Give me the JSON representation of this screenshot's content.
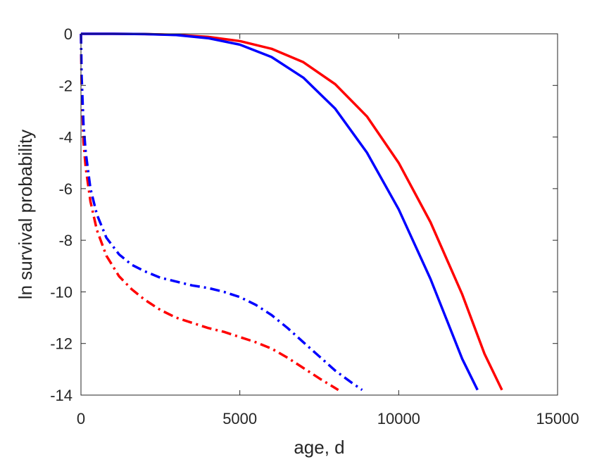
{
  "chart_data": {
    "type": "line",
    "title": "",
    "xlabel": "age, d",
    "ylabel": "ln survival probability",
    "xlim": [
      0,
      15000
    ],
    "ylim": [
      -14,
      0
    ],
    "xticks": [
      0,
      5000,
      10000,
      15000
    ],
    "xtick_labels": [
      "0",
      "5000",
      "10000",
      "15000"
    ],
    "yticks": [
      0,
      -2,
      -4,
      -6,
      -8,
      -10,
      -12,
      -14
    ],
    "ytick_labels": [
      "0",
      "-2",
      "-4",
      "-6",
      "-8",
      "-10",
      "-12",
      "-14"
    ],
    "grid": false,
    "legend": "none",
    "series": [
      {
        "color": "#ff0000",
        "style": "solid",
        "points": [
          [
            0,
            0
          ],
          [
            1000,
            -0.001
          ],
          [
            2000,
            -0.01
          ],
          [
            3000,
            -0.04
          ],
          [
            4000,
            -0.12
          ],
          [
            5000,
            -0.28
          ],
          [
            6000,
            -0.58
          ],
          [
            7000,
            -1.1
          ],
          [
            8000,
            -1.95
          ],
          [
            9000,
            -3.2
          ],
          [
            10000,
            -5.0
          ],
          [
            11000,
            -7.3
          ],
          [
            12000,
            -10.1
          ],
          [
            12700,
            -12.4
          ],
          [
            13250,
            -13.8
          ]
        ]
      },
      {
        "color": "#0000ff",
        "style": "solid",
        "points": [
          [
            0,
            0
          ],
          [
            1000,
            -0.001
          ],
          [
            2000,
            -0.01
          ],
          [
            3000,
            -0.05
          ],
          [
            4000,
            -0.17
          ],
          [
            5000,
            -0.42
          ],
          [
            6000,
            -0.9
          ],
          [
            7000,
            -1.7
          ],
          [
            8000,
            -2.9
          ],
          [
            9000,
            -4.6
          ],
          [
            10000,
            -6.8
          ],
          [
            11000,
            -9.5
          ],
          [
            12000,
            -12.6
          ],
          [
            12480,
            -13.8
          ]
        ]
      },
      {
        "color": "#ff0000",
        "style": "dashdot",
        "points": [
          [
            0,
            0
          ],
          [
            20,
            -2.0
          ],
          [
            80,
            -4.2
          ],
          [
            150,
            -5.2
          ],
          [
            300,
            -6.5
          ],
          [
            500,
            -7.6
          ],
          [
            800,
            -8.6
          ],
          [
            1200,
            -9.4
          ],
          [
            1600,
            -9.9
          ],
          [
            2000,
            -10.3
          ],
          [
            2500,
            -10.7
          ],
          [
            3000,
            -11.0
          ],
          [
            3500,
            -11.2
          ],
          [
            4000,
            -11.4
          ],
          [
            4500,
            -11.55
          ],
          [
            5000,
            -11.75
          ],
          [
            5500,
            -11.95
          ],
          [
            6000,
            -12.2
          ],
          [
            6500,
            -12.55
          ],
          [
            7000,
            -12.95
          ],
          [
            7500,
            -13.35
          ],
          [
            8100,
            -13.8
          ]
        ]
      },
      {
        "color": "#0000ff",
        "style": "dashdot",
        "points": [
          [
            0,
            0
          ],
          [
            20,
            -1.6
          ],
          [
            80,
            -3.5
          ],
          [
            150,
            -4.6
          ],
          [
            300,
            -6.0
          ],
          [
            500,
            -7.0
          ],
          [
            800,
            -7.9
          ],
          [
            1200,
            -8.55
          ],
          [
            1600,
            -8.95
          ],
          [
            2000,
            -9.2
          ],
          [
            2500,
            -9.45
          ],
          [
            3000,
            -9.6
          ],
          [
            3500,
            -9.75
          ],
          [
            4000,
            -9.85
          ],
          [
            4500,
            -10.0
          ],
          [
            5000,
            -10.2
          ],
          [
            5500,
            -10.5
          ],
          [
            6000,
            -10.9
          ],
          [
            6500,
            -11.4
          ],
          [
            7000,
            -11.95
          ],
          [
            7500,
            -12.5
          ],
          [
            8000,
            -13.05
          ],
          [
            8500,
            -13.5
          ],
          [
            8850,
            -13.8
          ]
        ]
      }
    ]
  }
}
